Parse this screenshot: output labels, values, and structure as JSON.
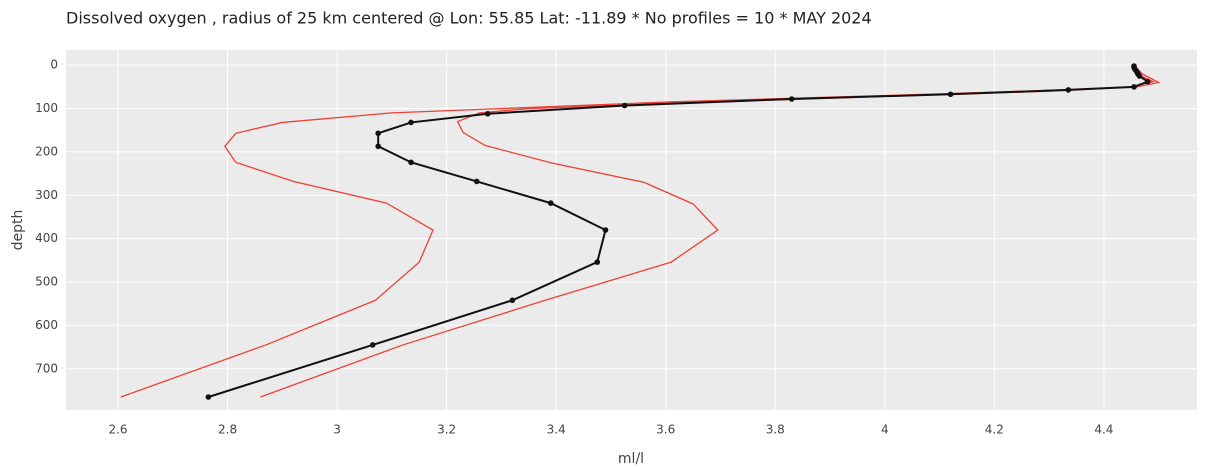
{
  "chart_data": {
    "type": "line",
    "title": "Dissolved oxygen , radius of 25 km centered @ Lon: 55.85 Lat: -11.89 * No profiles = 10  *  MAY 2024",
    "xlabel": "ml/l",
    "ylabel": "depth",
    "xlim": [
      2.505,
      4.57
    ],
    "ylim": [
      795,
      -35
    ],
    "y_reversed": true,
    "xticks": [
      2.6,
      2.8,
      3,
      3.2,
      3.4,
      3.6,
      3.8,
      4,
      4.2,
      4.4
    ],
    "yticks": [
      0,
      100,
      200,
      300,
      400,
      500,
      600,
      700
    ],
    "grid": true,
    "series": [
      {
        "color": "#ef4035",
        "markers": false,
        "x": [
          4.455,
          4.47,
          4.5,
          4.46,
          4.3,
          4.0,
          3.6,
          3.35,
          3.26,
          3.22,
          3.23,
          3.27,
          3.39,
          3.56,
          3.65,
          3.695,
          3.61,
          3.38,
          3.12,
          2.86
        ],
        "y": [
          0,
          20,
          40,
          50,
          60,
          72,
          88,
          100,
          110,
          130,
          155,
          185,
          225,
          270,
          320,
          380,
          454,
          542,
          645,
          765
        ]
      },
      {
        "color": "#ef4035",
        "markers": false,
        "x": [
          4.455,
          4.46,
          4.49,
          4.45,
          4.3,
          4.0,
          3.6,
          3.1,
          2.9,
          2.815,
          2.795,
          2.815,
          2.92,
          3.09,
          3.175,
          3.15,
          3.07,
          2.87,
          2.605
        ],
        "y": [
          0,
          20,
          38,
          50,
          58,
          70,
          85,
          110,
          132,
          157,
          187,
          224,
          268,
          318,
          380,
          454,
          542,
          645,
          765
        ]
      },
      {
        "color": "#111111",
        "markers": true,
        "x": [
          4.455,
          4.455,
          4.457,
          4.46,
          4.462,
          4.465,
          4.48,
          4.455,
          4.335,
          4.12,
          3.83,
          3.525,
          3.275,
          3.135,
          3.075,
          3.075,
          3.135,
          3.255,
          3.39,
          3.49,
          3.475,
          3.32,
          3.065,
          2.765
        ],
        "y": [
          2,
          5,
          10,
          15,
          20,
          25,
          38,
          50,
          57,
          67,
          78,
          93,
          112,
          132,
          157,
          187,
          224,
          268,
          318,
          380,
          454,
          542,
          645,
          765
        ]
      }
    ]
  }
}
